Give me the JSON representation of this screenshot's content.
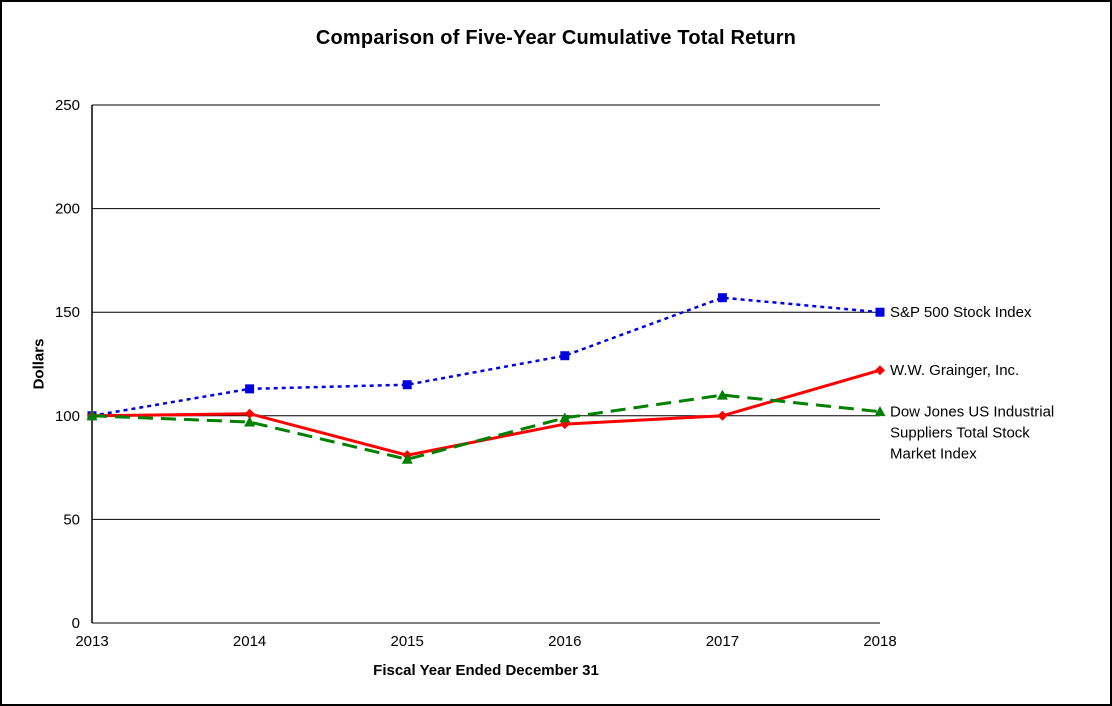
{
  "chart_data": {
    "type": "line",
    "title": "Comparison of Five-Year Cumulative Total Return",
    "xlabel": "Fiscal Year Ended December 31",
    "ylabel": "Dollars",
    "x": [
      "2013",
      "2014",
      "2015",
      "2016",
      "2017",
      "2018"
    ],
    "ylim": [
      0,
      250
    ],
    "yticks": [
      0,
      50,
      100,
      150,
      200,
      250
    ],
    "grid": true,
    "legend_position": "right-of-plot annotations",
    "series": [
      {
        "name": "S&P 500 Stock Index",
        "label_lines": [
          "S&P 500 Stock Index"
        ],
        "values": [
          100,
          113,
          115,
          129,
          157,
          150
        ],
        "color": "#0000E0",
        "dash": "4 4",
        "marker": "square",
        "width": 2.5
      },
      {
        "name": "W.W. Grainger, Inc.",
        "label_lines": [
          "W.W. Grainger, Inc."
        ],
        "values": [
          100,
          101,
          81,
          96,
          100,
          122
        ],
        "color": "#FF0000",
        "dash": "",
        "marker": "diamond",
        "width": 3
      },
      {
        "name": "Dow Jones US Industrial Suppliers Total Stock Market Index",
        "label_lines": [
          "Dow Jones US Industrial",
          "Suppliers Total Stock",
          "Market Index"
        ],
        "values": [
          100,
          97,
          79,
          99,
          110,
          102
        ],
        "color": "#008000",
        "dash": "15 8",
        "marker": "triangle",
        "width": 3
      }
    ]
  }
}
